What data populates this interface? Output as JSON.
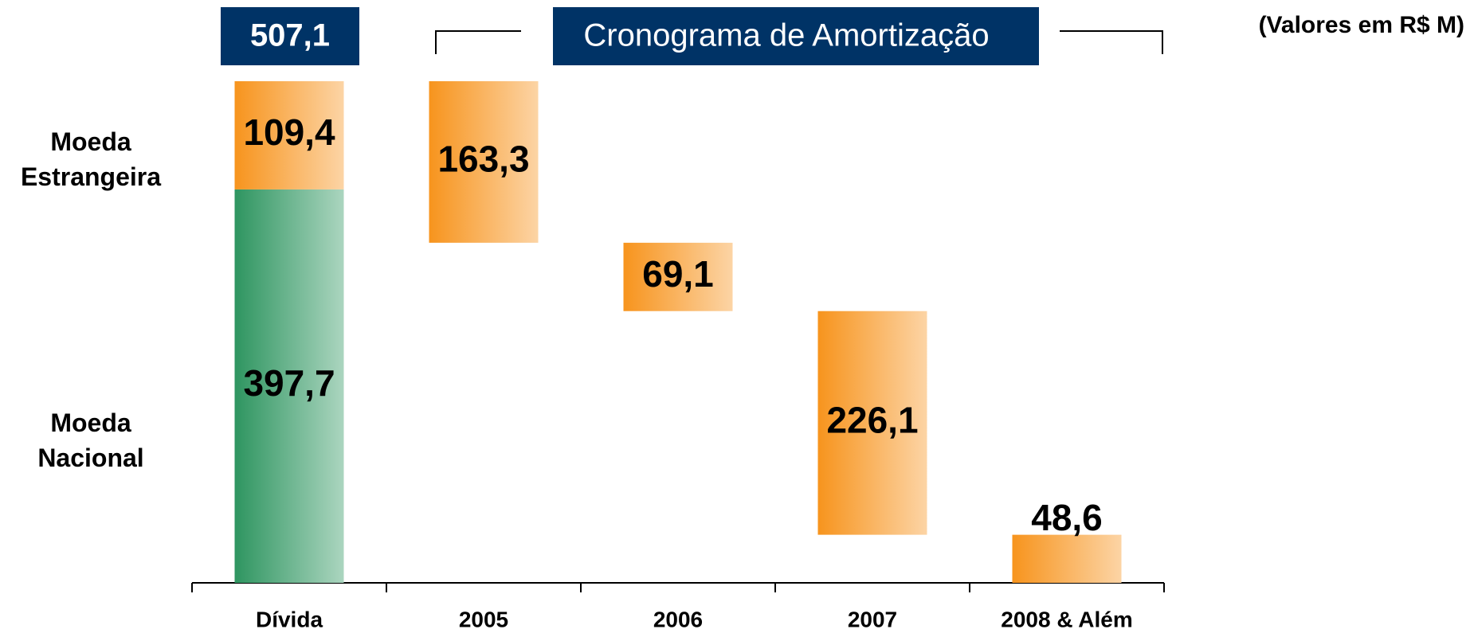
{
  "chart_data": {
    "type": "waterfall",
    "total": 507.1,
    "total_label": "507,1",
    "schedule_title": "Cronograma de Amortização",
    "unit_note": "(Valores em R$ M)",
    "categories": [
      "Dívida",
      "2005",
      "2006",
      "2007",
      "2008 & Além"
    ],
    "series": [
      {
        "name": "Moeda Nacional",
        "color": "#2e9560",
        "values": [
          397.7,
          null,
          null,
          null,
          null
        ],
        "value_labels": [
          "397,7",
          null,
          null,
          null,
          null
        ]
      },
      {
        "name": "Moeda Estrangeira",
        "color": "#f7941d",
        "values": [
          109.4,
          163.3,
          69.1,
          226.1,
          48.6
        ],
        "value_labels": [
          "109,4",
          "163,3",
          "69,1",
          "226,1",
          "48,6"
        ]
      }
    ]
  }
}
